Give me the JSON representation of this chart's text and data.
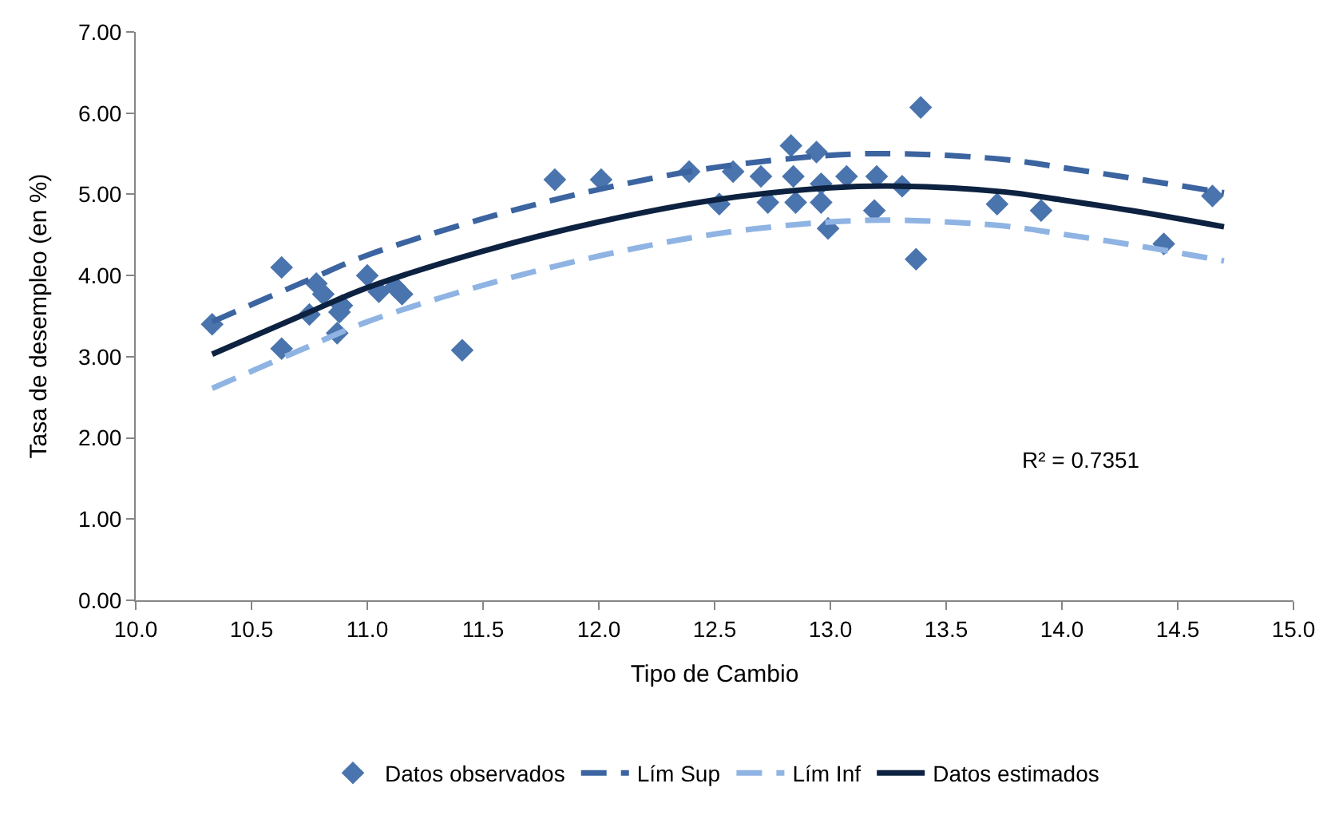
{
  "chart_data": {
    "type": "scatter",
    "xlabel": "Tipo de Cambio",
    "ylabel": "Tasa de desempleo (en %)",
    "xlim": [
      10.0,
      15.0
    ],
    "ylim": [
      0,
      7
    ],
    "xticks": [
      {
        "value": 10,
        "label": "10.0"
      },
      {
        "value": 10.5,
        "label": "10.5"
      },
      {
        "value": 11,
        "label": "11.0"
      },
      {
        "value": 11.5,
        "label": "11.5"
      },
      {
        "value": 12,
        "label": "12.0"
      },
      {
        "value": 12.5,
        "label": "12.5"
      },
      {
        "value": 13,
        "label": "13.0"
      },
      {
        "value": 13.5,
        "label": "13.5"
      },
      {
        "value": 14,
        "label": "14.0"
      },
      {
        "value": 14.5,
        "label": "14.5"
      },
      {
        "value": 15,
        "label": "15.0"
      }
    ],
    "yticks": [
      {
        "value": 0,
        "label": "0.00"
      },
      {
        "value": 1,
        "label": "1.00"
      },
      {
        "value": 2,
        "label": "2.00"
      },
      {
        "value": 3,
        "label": "3.00"
      },
      {
        "value": 4,
        "label": "4.00"
      },
      {
        "value": 5,
        "label": "5.00"
      },
      {
        "value": 6,
        "label": "6.00"
      },
      {
        "value": 7,
        "label": "7.00"
      }
    ],
    "legend": "bottom",
    "annotations": [
      "R² = 0.7351"
    ],
    "series": [
      {
        "name": "Datos observados",
        "marker": "diamond",
        "color": "#4a74ad",
        "x": [
          10.33,
          10.63,
          10.63,
          10.75,
          10.78,
          10.81,
          10.88,
          10.89,
          10.87,
          11.0,
          11.05,
          11.12,
          11.15,
          11.41,
          11.81,
          12.01,
          12.39,
          12.58,
          12.52,
          12.7,
          12.73,
          12.83,
          12.84,
          12.85,
          12.94,
          12.96,
          12.96,
          12.99,
          13.07,
          13.2,
          13.19,
          13.31,
          13.39,
          13.37,
          13.72,
          13.91,
          14.44,
          14.65
        ],
        "values": [
          3.4,
          4.1,
          3.1,
          3.52,
          3.9,
          3.77,
          3.55,
          3.63,
          3.29,
          4.0,
          3.8,
          3.86,
          3.77,
          3.08,
          5.18,
          5.18,
          5.28,
          5.28,
          4.88,
          5.22,
          4.9,
          5.6,
          5.22,
          4.9,
          5.52,
          5.13,
          4.9,
          4.58,
          5.22,
          5.22,
          4.8,
          5.1,
          6.07,
          4.2,
          4.88,
          4.8,
          4.39,
          4.98
        ]
      },
      {
        "name": "Lím Sup",
        "type": "line",
        "line_style": "dashed",
        "color": "#3b64a0",
        "x": [
          10.33,
          10.75,
          11.0,
          11.5,
          12.0,
          12.5,
          13.0,
          13.3,
          13.75,
          14.0,
          14.3,
          14.7
        ],
        "values": [
          3.43,
          3.95,
          4.25,
          4.7,
          5.06,
          5.33,
          5.48,
          5.5,
          5.43,
          5.33,
          5.2,
          5.02
        ]
      },
      {
        "name": "Lím Inf",
        "type": "line",
        "line_style": "dashed",
        "color": "#8fb4e3",
        "x": [
          10.33,
          10.75,
          11.0,
          11.5,
          12.0,
          12.5,
          13.0,
          13.3,
          13.75,
          14.0,
          14.3,
          14.7
        ],
        "values": [
          2.61,
          3.13,
          3.43,
          3.88,
          4.24,
          4.51,
          4.66,
          4.68,
          4.61,
          4.51,
          4.38,
          4.18
        ]
      },
      {
        "name": "Datos estimados",
        "type": "line",
        "line_style": "solid",
        "color": "#0d2240",
        "x": [
          10.33,
          10.75,
          11.0,
          11.5,
          12.0,
          12.5,
          13.0,
          13.3,
          13.75,
          14.0,
          14.3,
          14.7
        ],
        "values": [
          3.03,
          3.55,
          3.85,
          4.3,
          4.66,
          4.93,
          5.08,
          5.1,
          5.03,
          4.93,
          4.8,
          4.6
        ]
      }
    ]
  }
}
